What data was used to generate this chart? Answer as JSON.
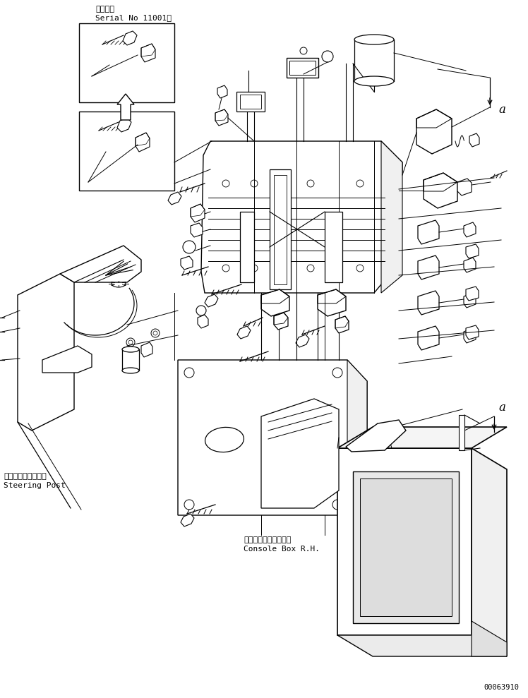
{
  "bg_color": "#ffffff",
  "line_color": "#000000",
  "fig_width": 7.48,
  "fig_height": 9.89,
  "dpi": 100,
  "title_jp": "適用号機",
  "title_en": "Serial No 11001～",
  "label_steering_jp": "ステアリングポスト",
  "label_steering_en": "Steering Post",
  "label_console_jp": "コンソールボックス右",
  "label_console_en": "Console Box R.H.",
  "part_number": "00063910",
  "label_a": "a"
}
